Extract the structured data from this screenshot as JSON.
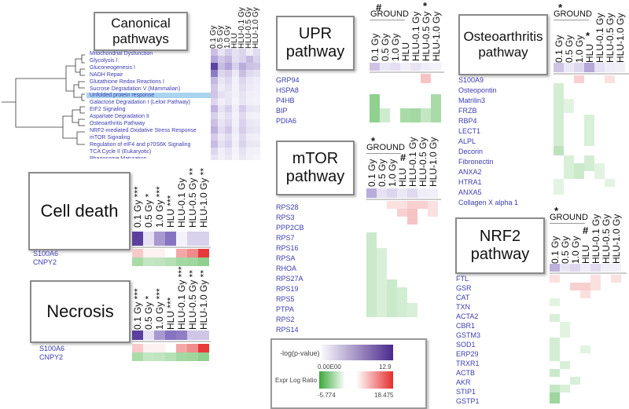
{
  "panels": {
    "canonical": {
      "title": "Canonical pathways",
      "columns": [
        "0.1 Gy",
        "0.5 Gy",
        "1.0 Gy",
        "HLU",
        "HLU-0.1 Gy",
        "HLU-0.5 Gy",
        "HLU-1.0 Gy"
      ],
      "pathways": [
        "Mitochondrial Dysfunction",
        "Glycolysis I",
        "Gluconeogenesis I",
        "NADH Repair",
        "Glutathione Redox Reactions I",
        "Sucrose Degradation V (Mammalian)",
        "Unfolded protein response",
        "Galactose Degradation I (Leloir Pathway)",
        "EIF2 Signaling",
        "Aspartate Degradation II",
        "Osteoarthritis Pathway",
        "NRF2-mediated Oxidative Stress Response",
        "mTOR Signaling",
        "Regulation of eIF4 and p70S6K Signaling",
        "TCA Cycle II (Eukaryotic)",
        "Phagosome Maturation"
      ],
      "highlighted": "Unfolded protein response"
    },
    "upr": {
      "title": "UPR pathway",
      "ground_label": "GROUND",
      "ground_mark": "#",
      "columns": [
        "0.1 Gy",
        "0.5 Gy",
        "1.0 Gy",
        "HLU",
        "HLU-0.1 Gy",
        "HLU-0.5 Gy",
        "HLU-1.0 Gy"
      ],
      "star": "*",
      "genes": [
        "GRP94",
        "HSPA8",
        "P4HB",
        "BIP",
        "PDIA6"
      ]
    },
    "osteo": {
      "title": "Osteoarthritis pathway",
      "ground_label": "GROUND",
      "ground_mark": "*",
      "columns": [
        "0.1 Gy",
        "0.5 Gy",
        "1.0 Gy",
        "HLU",
        "HLU-0.1 Gy",
        "HLU-0.5 Gy",
        "HLU-1.0 Gy"
      ],
      "star": "*",
      "genes": [
        "S100A9",
        "Osteopontin",
        "Matrilin3",
        "FRZB",
        "RBP4",
        "LECT1",
        "ALPL",
        "Decorin",
        "Fibronectin",
        "ANXA2",
        "HTRA1",
        "ANXA5",
        "Collagen X alpha 1"
      ]
    },
    "mtor": {
      "title": "mTOR pathway",
      "ground_label": "GROUND",
      "ground_mark": "*",
      "columns": [
        "0.1 Gy",
        "0.5 Gy",
        "1.0 Gy",
        "HLU",
        "HLU-0.1 Gy",
        "HLU-0.5 Gy",
        "HLU-1.0 Gy"
      ],
      "hash": "#",
      "genes": [
        "RPS28",
        "RPS3",
        "PPP2CB",
        "RPS7",
        "RPS16",
        "RPSA",
        "RHOA",
        "RPS27A",
        "RPS19",
        "RPS5",
        "PTPA",
        "RPS2",
        "RPS14"
      ]
    },
    "celldeath": {
      "title": "Cell death",
      "columns": [
        "0.1 Gy ***",
        "0.5 Gy *",
        "1.0 Gy ***",
        "HLU ***",
        "HLU-0.1 Gy",
        "HLU-0.5 Gy **",
        "HLU-1.0 Gy **"
      ],
      "genes": [
        "S100A6",
        "CNPY2"
      ]
    },
    "necrosis": {
      "title": "Necrosis",
      "columns": [
        "0.1 Gy ***",
        "0.5 Gy *",
        "1.0 Gy ***",
        "HLU ***",
        "HLU-0.1 Gy ***",
        "HLU-0.5 Gy **",
        "HLU-1.0 Gy **"
      ],
      "genes": [
        "S100A6",
        "CNPY2"
      ]
    },
    "nrf2": {
      "title": "NRF2 pathway",
      "ground_label": "GROUND",
      "ground_mark": "*",
      "columns": [
        "0.1 Gy",
        "0.5 Gy",
        "1.0 Gy",
        "HLU",
        "HLU-0.1 Gy",
        "HLU-0.5 Gy",
        "HLU-1.0 Gy"
      ],
      "hash": "#",
      "genes": [
        "FTL",
        "GSR",
        "CAT",
        "TXN",
        "ACTA2",
        "CBR1",
        "GSTM3",
        "SOD1",
        "ERP29",
        "TRXR1",
        "ACTB",
        "AKR",
        "STIP1",
        "GSTP1"
      ]
    }
  },
  "legend": {
    "pvalue_label": "-log(p-value)",
    "pvalue_min": "0.00E00",
    "pvalue_max": "12.9",
    "ratio_label": "Expr Log Ratio",
    "ratio_min": "-5.774",
    "ratio_max": "18.475",
    "colors": {
      "purple": "#4b2a8c",
      "green": "#3aa83a",
      "red": "#e62e2e"
    }
  }
}
